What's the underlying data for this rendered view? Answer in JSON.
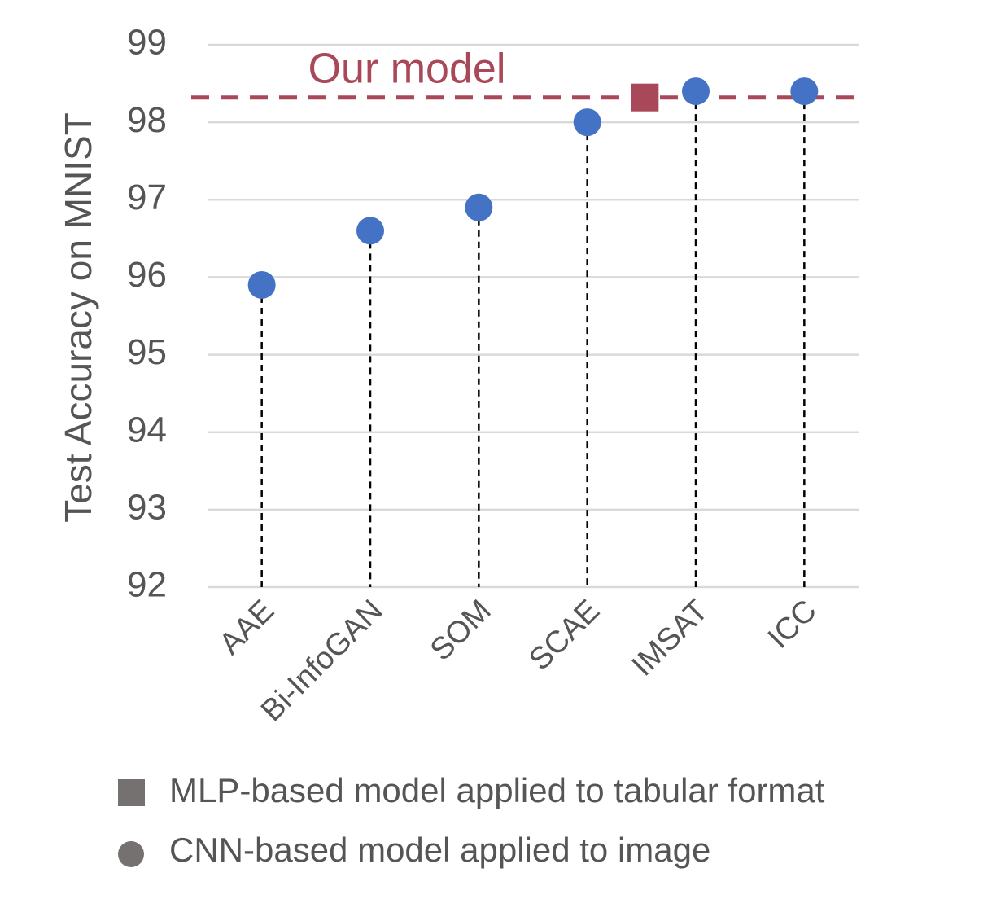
{
  "chart_data": {
    "type": "lollipop",
    "y_label": "Test Accuracy on MNIST",
    "categories": [
      "AAE",
      "Bi-InfoGAN",
      "SOM",
      "SCAE",
      "IMSAT",
      "ICC"
    ],
    "series": [
      {
        "name": "CNN-based model applied to image",
        "color": "#4472c4",
        "marker": "circle",
        "values": [
          95.9,
          96.6,
          96.9,
          98.0,
          98.4,
          98.4
        ]
      }
    ],
    "reference": {
      "name": "MLP-based model applied to tabular format",
      "label": "Our model",
      "value": 98.32,
      "color": "#a84858",
      "marker": "square"
    },
    "legend_color": "#767171",
    "ylim": [
      92,
      99
    ],
    "yticks": [
      92,
      93,
      94,
      95,
      96,
      97,
      98,
      99
    ],
    "grid": true
  }
}
